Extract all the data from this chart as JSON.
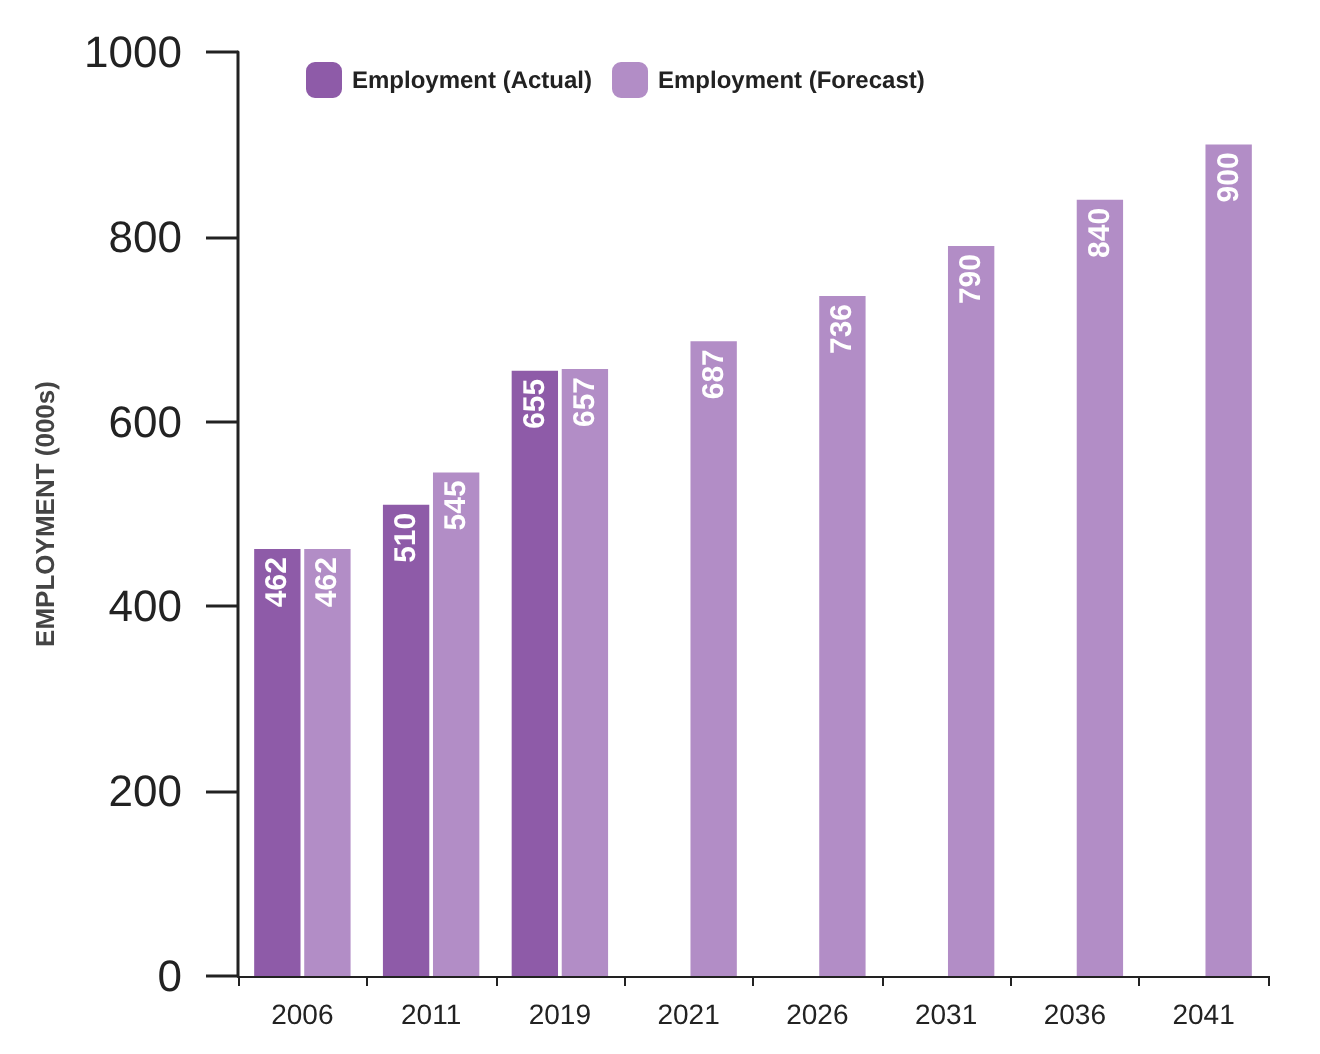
{
  "chart_data": {
    "type": "bar",
    "ylabel": "EMPLOYMENT (000s)",
    "categories": [
      "2006",
      "2011",
      "2019",
      "2021",
      "2026",
      "2031",
      "2036",
      "2041"
    ],
    "series": [
      {
        "name": "Employment (Actual)",
        "color": "#8e5ba8",
        "values": [
          462,
          510,
          655,
          null,
          null,
          null,
          null,
          null
        ]
      },
      {
        "name": "Employment (Forecast)",
        "color": "#b28dc6",
        "values": [
          462,
          545,
          657,
          687,
          736,
          790,
          840,
          900
        ]
      }
    ],
    "ylim": [
      0,
      1000
    ],
    "yticks": [
      0,
      200,
      400,
      600,
      800,
      1000
    ],
    "grid": false,
    "legend": "top left",
    "data_labels": true
  }
}
